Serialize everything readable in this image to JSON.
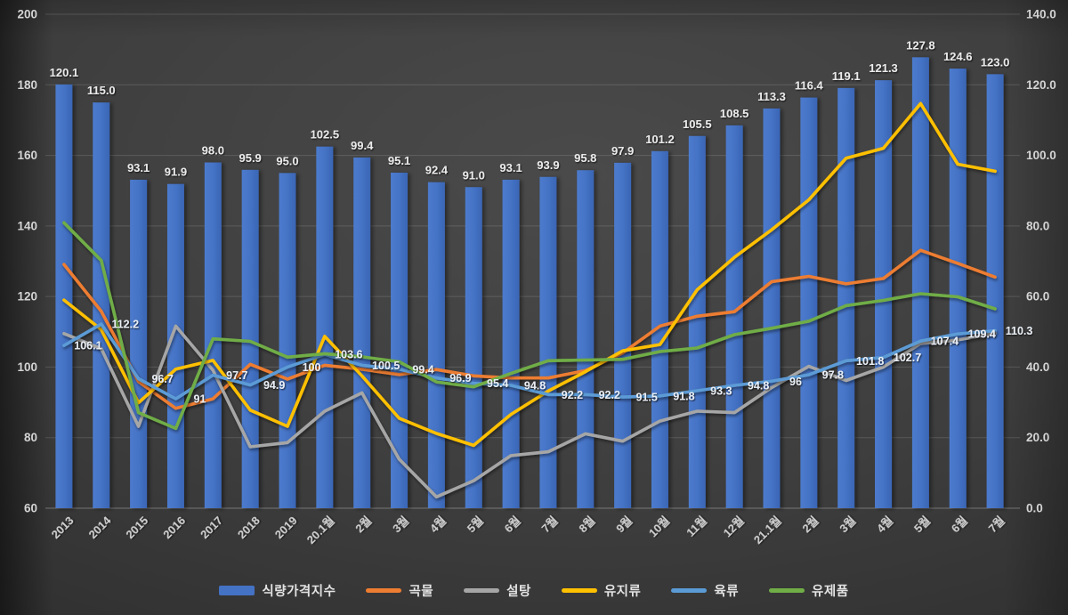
{
  "chart_data": {
    "type": "combo-bar-line",
    "title": "",
    "grid": true,
    "legend_position": "bottom",
    "categories": [
      "2013",
      "2014",
      "2015",
      "2016",
      "2017",
      "2018",
      "2019",
      "20.1월",
      "2월",
      "3월",
      "4월",
      "5월",
      "6월",
      "7월",
      "8월",
      "9월",
      "10월",
      "11월",
      "12월",
      "21.1월",
      "2월",
      "3월",
      "4월",
      "5월",
      "6월",
      "7월"
    ],
    "left_axis": {
      "min": 60,
      "max": 200,
      "ticks": [
        "200",
        "180",
        "160",
        "140",
        "120",
        "100",
        "80",
        "60"
      ]
    },
    "right_axis": {
      "min": 0,
      "max": 140,
      "ticks": [
        "140.0",
        "120.0",
        "100.0",
        "80.0",
        "60.0",
        "40.0",
        "20.0",
        "0.0"
      ]
    },
    "series": [
      {
        "type": "bar",
        "id": "food-price-index",
        "label": "식량가격지수",
        "axis": "right",
        "color": "#4472C4",
        "value_labels": [
          "120.1",
          "115.0",
          "93.1",
          "91.9",
          "98.0",
          "95.9",
          "95.0",
          "102.5",
          "99.4",
          "95.1",
          "92.4",
          "91.0",
          "93.1",
          "93.9",
          "95.8",
          "97.9",
          "101.2",
          "105.5",
          "108.5",
          "113.3",
          "116.4",
          "119.1",
          "121.3",
          "127.8",
          "124.6",
          "123.0"
        ]
      },
      {
        "type": "line",
        "id": "cereals",
        "label": "곡물",
        "axis": "left",
        "color": "#ED7D31",
        "values": [
          129.1,
          115.8,
          95.9,
          88.3,
          91.0,
          100.8,
          96.6,
          100.5,
          99.4,
          97.9,
          99.3,
          97.5,
          96.9,
          96.9,
          99.0,
          104.0,
          111.6,
          114.4,
          115.7,
          124.2,
          125.7,
          123.6,
          125.1,
          133.1,
          129.4,
          125.5
        ]
      },
      {
        "type": "line",
        "id": "sugar",
        "label": "설탕",
        "axis": "left",
        "color": "#A6A6A6",
        "values": [
          109.5,
          105.2,
          83.2,
          111.6,
          99.1,
          77.4,
          78.6,
          87.5,
          92.7,
          73.9,
          63.2,
          67.8,
          74.9,
          76.0,
          81.1,
          79.0,
          84.7,
          87.5,
          87.1,
          94.2,
          100.2,
          96.2,
          100.0,
          106.7,
          107.7,
          109.6
        ]
      },
      {
        "type": "line",
        "id": "oils",
        "label": "유지류",
        "axis": "left",
        "color": "#FFC000",
        "values": [
          119.0,
          110.6,
          89.9,
          99.4,
          101.9,
          87.8,
          83.2,
          108.7,
          97.5,
          85.5,
          81.2,
          77.8,
          86.6,
          93.2,
          98.7,
          104.6,
          106.4,
          121.9,
          131.1,
          138.9,
          147.4,
          159.2,
          162.0,
          174.7,
          157.5,
          155.5
        ]
      },
      {
        "type": "line",
        "id": "meat",
        "label": "육류",
        "axis": "left",
        "color": "#5B9BD5",
        "value_labels": [
          "106.1",
          "112.2",
          "96.7",
          "91",
          "97.7",
          "94.9",
          "100",
          "103.6",
          "100.5",
          "99.4",
          "96.9",
          "95.4",
          "94.8",
          "92.2",
          "92.2",
          "91.5",
          "91.8",
          "93.3",
          "94.8",
          "96",
          "97.8",
          "101.8",
          "102.7",
          "107.4",
          "109.4",
          "110.3"
        ]
      },
      {
        "type": "line",
        "id": "dairy",
        "label": "유제품",
        "axis": "left",
        "color": "#70AD47",
        "values": [
          140.9,
          130.2,
          87.1,
          82.6,
          108.0,
          107.3,
          102.8,
          103.8,
          102.9,
          101.5,
          95.8,
          94.4,
          98.2,
          101.8,
          102.0,
          102.2,
          104.4,
          105.4,
          109.2,
          111.0,
          113.0,
          117.4,
          118.9,
          120.8,
          119.9,
          116.5
        ]
      }
    ],
    "colors": {
      "bar": "#4472C4",
      "cereals": "#ED7D31",
      "sugar": "#A6A6A6",
      "oils": "#FFC000",
      "meat": "#5B9BD5",
      "dairy": "#70AD47",
      "background": "#3e3e3e",
      "tick_text": "#d4d4d4",
      "label_text": "#e9e9e9"
    }
  }
}
